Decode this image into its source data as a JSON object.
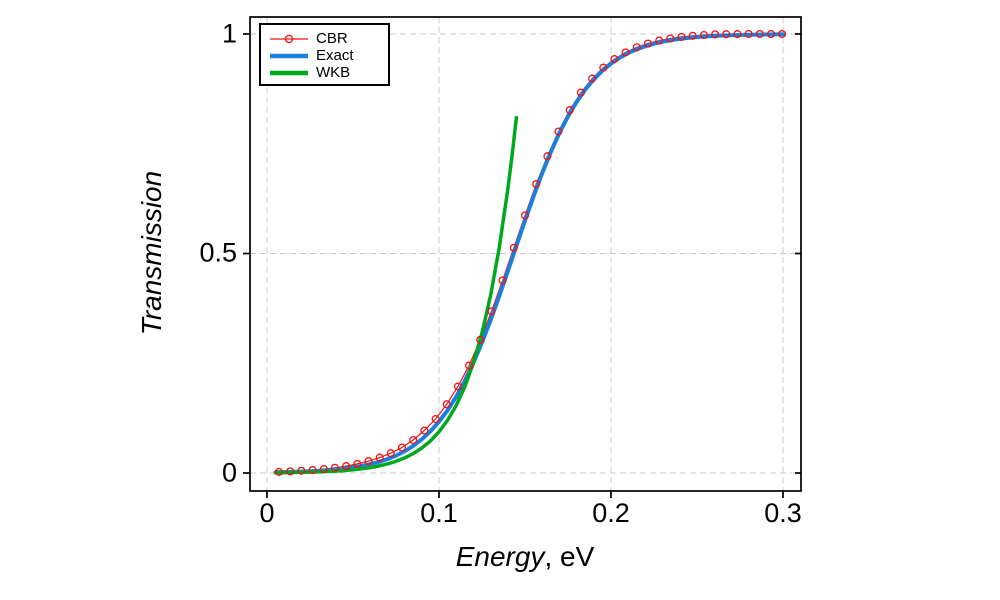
{
  "figure": {
    "background": "#ffffff",
    "axis_color": "#000000",
    "grid_color": "#c9c9c9",
    "grid_style": "dashed"
  },
  "chart_data": {
    "type": "line",
    "title": "",
    "xlabel": "Energy, eV",
    "ylabel": "Transmission",
    "x_axis": {
      "label_em": "Energy",
      "label_rest": ", eV",
      "min": -0.01,
      "max": 0.31,
      "tick_values": [
        0,
        0.1,
        0.2,
        0.3
      ],
      "tick_labels": [
        "0",
        "0.1",
        "0.2",
        "0.3"
      ]
    },
    "y_axis": {
      "label": "Transmission",
      "min": -0.04,
      "max": 1.04,
      "tick_values": [
        1,
        0.5,
        0
      ],
      "tick_labels": [
        "1",
        "0.5",
        "0"
      ]
    },
    "grid": true,
    "legend": {
      "position": "top-left",
      "entries": [
        "CBR",
        "Exact",
        "WKB"
      ]
    },
    "series": [
      {
        "name": "CBR",
        "color": "#ee1111",
        "style": "line+markers",
        "marker": "open-circle",
        "line_width": 1.2,
        "x": [
          0.007,
          0.0135,
          0.02,
          0.0265,
          0.033,
          0.0395,
          0.046,
          0.0525,
          0.059,
          0.0655,
          0.072,
          0.0785,
          0.085,
          0.0915,
          0.098,
          0.1045,
          0.111,
          0.1175,
          0.124,
          0.1305,
          0.137,
          0.1435,
          0.15,
          0.1565,
          0.163,
          0.1695,
          0.176,
          0.1825,
          0.189,
          0.1955,
          0.202,
          0.2085,
          0.215,
          0.2215,
          0.228,
          0.2345,
          0.241,
          0.2475,
          0.254,
          0.2605,
          0.267,
          0.2735,
          0.28,
          0.2865,
          0.293,
          0.2995
        ],
        "y": [
          0.0026,
          0.0036,
          0.0049,
          0.0066,
          0.0088,
          0.0119,
          0.0157,
          0.0207,
          0.0271,
          0.0351,
          0.0452,
          0.0581,
          0.0752,
          0.0968,
          0.123,
          0.1565,
          0.1971,
          0.2449,
          0.3034,
          0.3684,
          0.4388,
          0.5129,
          0.5868,
          0.6581,
          0.7216,
          0.778,
          0.8267,
          0.8665,
          0.8984,
          0.9235,
          0.9429,
          0.9582,
          0.9698,
          0.9784,
          0.9849,
          0.9898,
          0.9934,
          0.9959,
          0.9978,
          0.999,
          0.9996,
          0.9998,
          0.9999,
          1.0,
          1.0,
          1.0
        ]
      },
      {
        "name": "Exact",
        "color": "#1b7fdd",
        "style": "line",
        "line_width": 4,
        "x": [
          0.005,
          0.01,
          0.015,
          0.02,
          0.025,
          0.03,
          0.035,
          0.04,
          0.045,
          0.05,
          0.055,
          0.06,
          0.065,
          0.07,
          0.075,
          0.08,
          0.085,
          0.09,
          0.095,
          0.1,
          0.105,
          0.11,
          0.115,
          0.12,
          0.125,
          0.13,
          0.135,
          0.14,
          0.145,
          0.15,
          0.155,
          0.16,
          0.165,
          0.17,
          0.175,
          0.18,
          0.185,
          0.19,
          0.195,
          0.2,
          0.205,
          0.21,
          0.215,
          0.22,
          0.225,
          0.23,
          0.235,
          0.24,
          0.245,
          0.25,
          0.255,
          0.26,
          0.265,
          0.27,
          0.275,
          0.28,
          0.285,
          0.29,
          0.295,
          0.3
        ],
        "y": [
          0.0016,
          0.002,
          0.0025,
          0.0032,
          0.004,
          0.0051,
          0.0064,
          0.008,
          0.0101,
          0.0128,
          0.016,
          0.0202,
          0.0253,
          0.0317,
          0.0397,
          0.0496,
          0.0617,
          0.0767,
          0.0949,
          0.1168,
          0.143,
          0.1739,
          0.2099,
          0.2511,
          0.2973,
          0.348,
          0.4024,
          0.4594,
          0.5174,
          0.575,
          0.6306,
          0.683,
          0.7311,
          0.7743,
          0.8123,
          0.8452,
          0.8733,
          0.8969,
          0.9164,
          0.9326,
          0.9458,
          0.9566,
          0.9653,
          0.9723,
          0.9779,
          0.9824,
          0.986,
          0.9889,
          0.9912,
          0.9931,
          0.9944,
          0.9956,
          0.9965,
          0.9972,
          0.9978,
          0.9983,
          0.9986,
          0.9989,
          0.9991,
          0.9993
        ]
      },
      {
        "name": "WKB",
        "color": "#00a81e",
        "style": "line",
        "line_width": 3.5,
        "x": [
          0.005,
          0.01,
          0.015,
          0.02,
          0.025,
          0.03,
          0.035,
          0.04,
          0.045,
          0.05,
          0.055,
          0.06,
          0.065,
          0.07,
          0.075,
          0.08,
          0.085,
          0.09,
          0.095,
          0.1,
          0.105,
          0.11,
          0.115,
          0.12,
          0.125,
          0.13,
          0.135,
          0.14,
          0.1425,
          0.145
        ],
        "y": [
          0.0007,
          0.0009,
          0.0012,
          0.0016,
          0.002,
          0.0026,
          0.0034,
          0.0044,
          0.0057,
          0.0074,
          0.0096,
          0.0124,
          0.016,
          0.0207,
          0.0267,
          0.0344,
          0.0442,
          0.0569,
          0.073,
          0.0938,
          0.1202,
          0.1537,
          0.1964,
          0.2505,
          0.3188,
          0.4046,
          0.5126,
          0.6462,
          0.7238,
          0.8095
        ]
      }
    ]
  }
}
